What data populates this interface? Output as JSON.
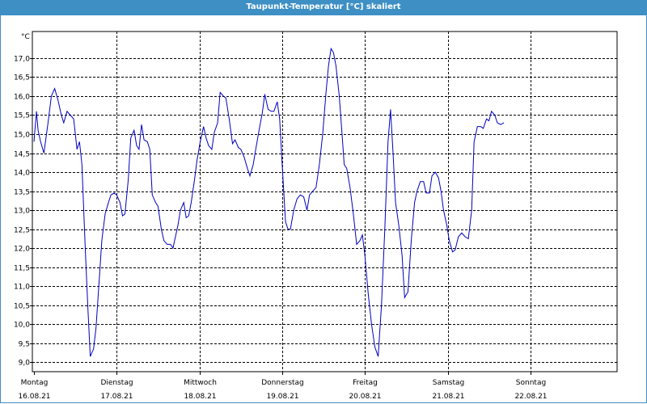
{
  "window": {
    "title": "Taupunkt-Temperatur [°C] skaliert"
  },
  "chart_data": {
    "type": "line",
    "title": "Taupunkt-Temperatur [°C] skaliert",
    "ylabel": "°C",
    "ylim": [
      8.75,
      17.7
    ],
    "yticks": [
      "17,0",
      "16,5",
      "16,0",
      "15,5",
      "15,0",
      "14,5",
      "14,0",
      "13,5",
      "13,0",
      "12,5",
      "12,0",
      "11,5",
      "11,0",
      "10,5",
      "10,0",
      "9,5",
      "9,0"
    ],
    "ytick_values": [
      17.0,
      16.5,
      16.0,
      15.5,
      15.0,
      14.5,
      14.0,
      13.5,
      13.0,
      12.5,
      12.0,
      11.5,
      11.0,
      10.5,
      10.0,
      9.5,
      9.0
    ],
    "xlim": [
      0,
      7
    ],
    "days": [
      {
        "weekday": "Montag",
        "date": "16.08.21"
      },
      {
        "weekday": "Dienstag",
        "date": "17.08.21"
      },
      {
        "weekday": "Mittwoch",
        "date": "18.08.21"
      },
      {
        "weekday": "Donnerstag",
        "date": "19.08.21"
      },
      {
        "weekday": "Freitag",
        "date": "20.08.21"
      },
      {
        "weekday": "Samstag",
        "date": "21.08.21"
      },
      {
        "weekday": "Sonntag",
        "date": "22.08.21"
      }
    ],
    "grid": true,
    "series": [
      {
        "color": "#0000c0",
        "points": [
          [
            0.0,
            14.8
          ],
          [
            0.03,
            15.6
          ],
          [
            0.05,
            15.1
          ],
          [
            0.08,
            14.8
          ],
          [
            0.12,
            14.5
          ],
          [
            0.17,
            15.3
          ],
          [
            0.21,
            16.0
          ],
          [
            0.25,
            16.2
          ],
          [
            0.29,
            15.9
          ],
          [
            0.33,
            15.5
          ],
          [
            0.36,
            15.3
          ],
          [
            0.4,
            15.6
          ],
          [
            0.44,
            15.5
          ],
          [
            0.48,
            15.4
          ],
          [
            0.52,
            14.6
          ],
          [
            0.55,
            14.8
          ],
          [
            0.58,
            14.2
          ],
          [
            0.62,
            12.0
          ],
          [
            0.65,
            10.5
          ],
          [
            0.68,
            9.15
          ],
          [
            0.72,
            9.35
          ],
          [
            0.75,
            9.9
          ],
          [
            0.79,
            11.2
          ],
          [
            0.82,
            12.2
          ],
          [
            0.86,
            12.9
          ],
          [
            0.9,
            13.2
          ],
          [
            0.93,
            13.4
          ],
          [
            0.97,
            13.45
          ],
          [
            1.0,
            13.4
          ],
          [
            1.04,
            13.2
          ],
          [
            1.07,
            12.85
          ],
          [
            1.1,
            12.9
          ],
          [
            1.14,
            13.8
          ],
          [
            1.17,
            14.9
          ],
          [
            1.21,
            15.1
          ],
          [
            1.24,
            14.7
          ],
          [
            1.27,
            14.6
          ],
          [
            1.3,
            15.25
          ],
          [
            1.33,
            14.85
          ],
          [
            1.37,
            14.8
          ],
          [
            1.4,
            14.6
          ],
          [
            1.43,
            13.4
          ],
          [
            1.47,
            13.2
          ],
          [
            1.5,
            13.1
          ],
          [
            1.54,
            12.5
          ],
          [
            1.57,
            12.2
          ],
          [
            1.61,
            12.1
          ],
          [
            1.65,
            12.1
          ],
          [
            1.68,
            12.0
          ],
          [
            1.7,
            12.2
          ],
          [
            1.74,
            12.6
          ],
          [
            1.77,
            13.0
          ],
          [
            1.81,
            13.2
          ],
          [
            1.84,
            12.8
          ],
          [
            1.87,
            12.85
          ],
          [
            1.9,
            13.2
          ],
          [
            1.94,
            13.8
          ],
          [
            1.97,
            14.3
          ],
          [
            2.01,
            14.8
          ],
          [
            2.05,
            15.2
          ],
          [
            2.08,
            14.9
          ],
          [
            2.11,
            14.7
          ],
          [
            2.15,
            14.6
          ],
          [
            2.18,
            15.05
          ],
          [
            2.22,
            15.3
          ],
          [
            2.25,
            16.1
          ],
          [
            2.29,
            16.0
          ],
          [
            2.32,
            15.95
          ],
          [
            2.36,
            15.4
          ],
          [
            2.4,
            14.75
          ],
          [
            2.43,
            14.85
          ],
          [
            2.47,
            14.65
          ],
          [
            2.5,
            14.6
          ],
          [
            2.54,
            14.4
          ],
          [
            2.58,
            14.1
          ],
          [
            2.61,
            13.9
          ],
          [
            2.65,
            14.2
          ],
          [
            2.68,
            14.6
          ],
          [
            2.72,
            15.1
          ],
          [
            2.76,
            15.55
          ],
          [
            2.79,
            16.05
          ],
          [
            2.83,
            15.65
          ],
          [
            2.87,
            15.6
          ],
          [
            2.9,
            15.6
          ],
          [
            2.94,
            15.85
          ],
          [
            2.97,
            15.4
          ],
          [
            3.0,
            14.2
          ],
          [
            3.04,
            12.7
          ],
          [
            3.07,
            12.5
          ],
          [
            3.1,
            12.5
          ],
          [
            3.14,
            13.0
          ],
          [
            3.18,
            13.3
          ],
          [
            3.22,
            13.4
          ],
          [
            3.26,
            13.35
          ],
          [
            3.3,
            13.0
          ],
          [
            3.33,
            13.4
          ],
          [
            3.37,
            13.5
          ],
          [
            3.41,
            13.6
          ],
          [
            3.45,
            14.2
          ],
          [
            3.49,
            15.0
          ],
          [
            3.53,
            16.1
          ],
          [
            3.56,
            16.8
          ],
          [
            3.59,
            17.25
          ],
          [
            3.62,
            17.15
          ],
          [
            3.65,
            16.8
          ],
          [
            3.69,
            16.0
          ],
          [
            3.72,
            15.1
          ],
          [
            3.75,
            14.2
          ],
          [
            3.78,
            14.1
          ],
          [
            3.82,
            13.6
          ],
          [
            3.86,
            12.9
          ],
          [
            3.9,
            12.1
          ],
          [
            3.94,
            12.2
          ],
          [
            3.97,
            12.35
          ],
          [
            4.0,
            11.8
          ],
          [
            4.04,
            10.8
          ],
          [
            4.08,
            10.0
          ],
          [
            4.12,
            9.4
          ],
          [
            4.16,
            9.15
          ],
          [
            4.2,
            10.5
          ],
          [
            4.24,
            12.5
          ],
          [
            4.28,
            14.8
          ],
          [
            4.31,
            15.65
          ],
          [
            4.34,
            14.5
          ],
          [
            4.37,
            13.2
          ],
          [
            4.41,
            12.6
          ],
          [
            4.45,
            11.8
          ],
          [
            4.48,
            10.7
          ],
          [
            4.52,
            10.85
          ],
          [
            4.56,
            12.2
          ],
          [
            4.6,
            13.2
          ],
          [
            4.63,
            13.5
          ],
          [
            4.67,
            13.75
          ],
          [
            4.71,
            13.75
          ],
          [
            4.74,
            13.45
          ],
          [
            4.78,
            13.45
          ],
          [
            4.81,
            13.9
          ],
          [
            4.85,
            14.0
          ],
          [
            4.89,
            13.85
          ],
          [
            4.92,
            13.5
          ],
          [
            4.95,
            13.0
          ],
          [
            4.99,
            12.6
          ],
          [
            5.02,
            12.2
          ],
          [
            5.06,
            11.9
          ],
          [
            5.09,
            11.95
          ],
          [
            5.13,
            12.3
          ],
          [
            5.17,
            12.4
          ],
          [
            5.21,
            12.3
          ],
          [
            5.25,
            12.25
          ],
          [
            5.29,
            13.0
          ],
          [
            5.32,
            14.8
          ],
          [
            5.36,
            15.2
          ],
          [
            5.4,
            15.2
          ],
          [
            5.43,
            15.15
          ],
          [
            5.47,
            15.4
          ],
          [
            5.5,
            15.35
          ],
          [
            5.53,
            15.6
          ],
          [
            5.57,
            15.5
          ],
          [
            5.6,
            15.3
          ],
          [
            5.64,
            15.25
          ],
          [
            5.68,
            15.3
          ]
        ]
      }
    ]
  }
}
